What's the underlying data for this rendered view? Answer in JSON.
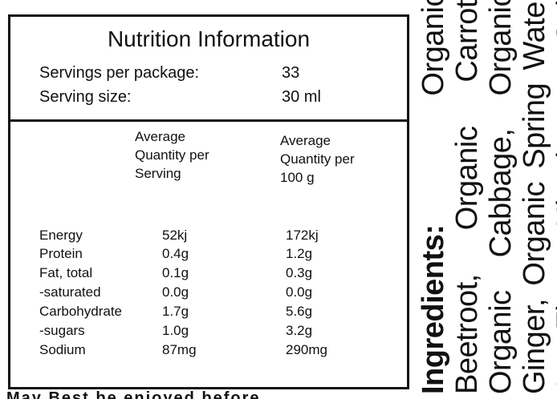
{
  "panel": {
    "title": "Nutrition Information",
    "servings_label": "Servings per package:",
    "servings_value": "33",
    "size_label": "Serving size:",
    "size_value": "30 ml"
  },
  "table": {
    "col1_header": [
      "Average",
      "Quantity per",
      "Serving"
    ],
    "col2_header": [
      "Average",
      "Quantity per",
      "100 g"
    ],
    "rows": [
      {
        "name": "Energy",
        "per_serving": "52kj",
        "per_100g": "172kj"
      },
      {
        "name": "Protein",
        "per_serving": "0.4g",
        "per_100g": "1.2g"
      },
      {
        "name": "Fat, total",
        "per_serving": "0.1g",
        "per_100g": "0.3g"
      },
      {
        "name": "-saturated",
        "per_serving": "0.0g",
        "per_100g": "0.0g"
      },
      {
        "name": "Carbohydrate",
        "per_serving": "1.7g",
        "per_100g": "5.6g"
      },
      {
        "name": "-sugars",
        "per_serving": "1.0g",
        "per_100g": "3.2g"
      },
      {
        "name": "Sodium",
        "per_serving": "87mg",
        "per_100g": "290mg"
      }
    ]
  },
  "ingredients": {
    "label": "Ingredients:",
    "text": "Organic Beetroot, Organic Carrot, Organic Cabbage, Organic Ginger, Organic Spring Water & Fine Himalayan Salt"
  },
  "bottom_text": "May     Best     be     enjoyed     before"
}
